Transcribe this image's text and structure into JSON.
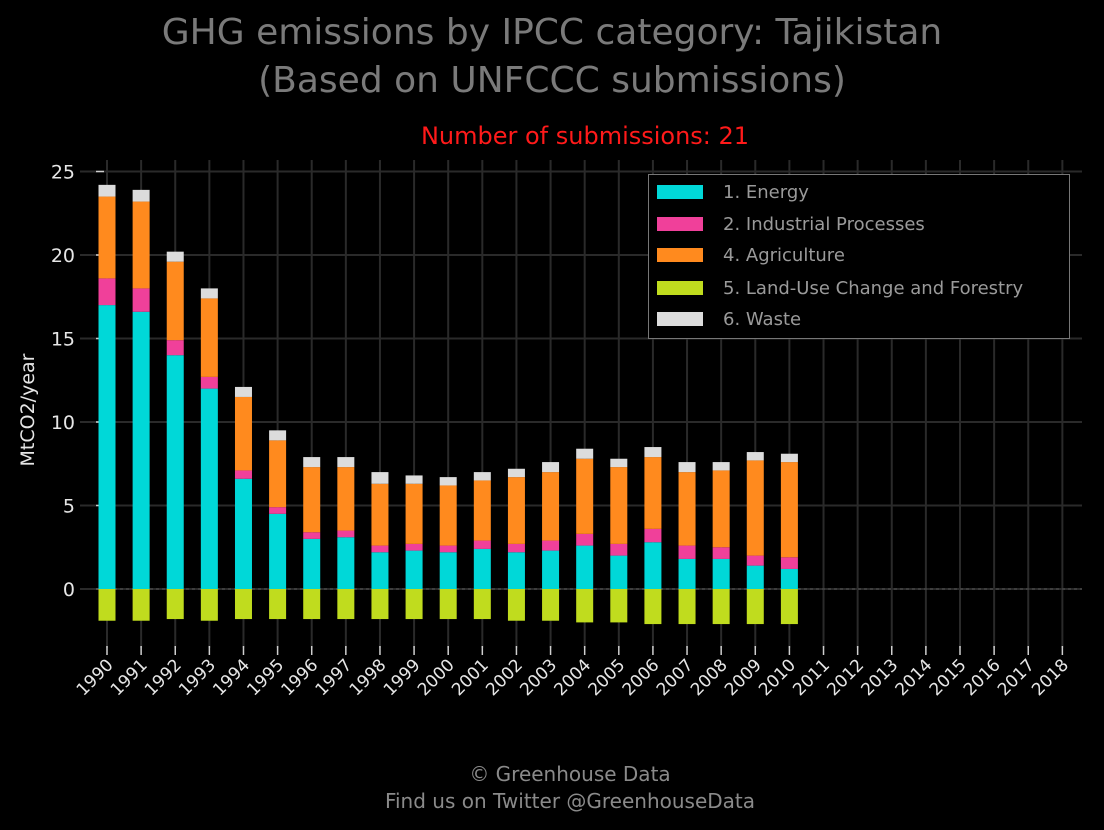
{
  "title_line1": "GHG emissions by IPCC category: Tajikistan",
  "title_line2": "(Based on UNFCCC submissions)",
  "subtitle": "Number of submissions: 21",
  "footer_line1": "© Greenhouse Data",
  "footer_line2": "Find us on Twitter @GreenhouseData",
  "colors": {
    "background": "#000000",
    "energy": "#00d8d8",
    "industrial": "#f0409a",
    "agriculture": "#ff8a1e",
    "landuse": "#c0dc1e",
    "waste": "#dcdcdc",
    "subtitle": "#ff1a1a"
  },
  "legend": [
    {
      "label": "1. Energy",
      "color": "#00d8d8"
    },
    {
      "label": "2. Industrial Processes",
      "color": "#f0409a"
    },
    {
      "label": "4. Agriculture",
      "color": "#ff8a1e"
    },
    {
      "label": "5. Land-Use Change and Forestry",
      "color": "#c0dc1e"
    },
    {
      "label": "6. Waste",
      "color": "#dcdcdc"
    }
  ],
  "chart_data": {
    "type": "bar",
    "stacked": true,
    "title": "GHG emissions by IPCC category: Tajikistan (Based on UNFCCC submissions)",
    "subtitle": "Number of submissions: 21",
    "xlabel": "",
    "ylabel": "MtCO2/year",
    "ylim": [
      -3.5,
      25.5
    ],
    "yticks": [
      0,
      5,
      10,
      15,
      20,
      25
    ],
    "grid": true,
    "legend_position": "top-right",
    "categories": [
      "1990",
      "1991",
      "1992",
      "1993",
      "1994",
      "1995",
      "1996",
      "1997",
      "1998",
      "1999",
      "2000",
      "2001",
      "2002",
      "2003",
      "2004",
      "2005",
      "2006",
      "2007",
      "2008",
      "2009",
      "2010",
      "2011",
      "2012",
      "2013",
      "2014",
      "2015",
      "2016",
      "2017",
      "2018"
    ],
    "series": [
      {
        "name": "1. Energy",
        "values": [
          17.0,
          16.6,
          14.0,
          12.0,
          6.6,
          4.5,
          3.0,
          3.1,
          2.2,
          2.3,
          2.2,
          2.4,
          2.2,
          2.3,
          2.6,
          2.0,
          2.8,
          1.8,
          1.8,
          1.4,
          1.2,
          null,
          null,
          null,
          null,
          null,
          null,
          null,
          null
        ]
      },
      {
        "name": "2. Industrial Processes",
        "values": [
          1.6,
          1.4,
          0.9,
          0.7,
          0.5,
          0.4,
          0.4,
          0.4,
          0.4,
          0.4,
          0.4,
          0.5,
          0.5,
          0.6,
          0.7,
          0.7,
          0.8,
          0.8,
          0.7,
          0.6,
          0.7,
          null,
          null,
          null,
          null,
          null,
          null,
          null,
          null
        ]
      },
      {
        "name": "4. Agriculture",
        "values": [
          4.9,
          5.2,
          4.7,
          4.7,
          4.4,
          4.0,
          3.9,
          3.8,
          3.7,
          3.6,
          3.6,
          3.6,
          4.0,
          4.1,
          4.5,
          4.6,
          4.3,
          4.4,
          4.6,
          5.7,
          5.7,
          null,
          null,
          null,
          null,
          null,
          null,
          null,
          null
        ]
      },
      {
        "name": "5. Land-Use Change and Forestry",
        "values": [
          -1.9,
          -1.9,
          -1.8,
          -1.9,
          -1.8,
          -1.8,
          -1.8,
          -1.8,
          -1.8,
          -1.8,
          -1.8,
          -1.8,
          -1.9,
          -1.9,
          -2.0,
          -2.0,
          -2.1,
          -2.1,
          -2.1,
          -2.1,
          -2.1,
          null,
          null,
          null,
          null,
          null,
          null,
          null,
          null
        ]
      },
      {
        "name": "6. Waste",
        "values": [
          0.7,
          0.7,
          0.6,
          0.6,
          0.6,
          0.6,
          0.6,
          0.6,
          0.7,
          0.5,
          0.5,
          0.5,
          0.5,
          0.6,
          0.6,
          0.5,
          0.6,
          0.6,
          0.5,
          0.5,
          0.5,
          null,
          null,
          null,
          null,
          null,
          null,
          null,
          null
        ]
      }
    ]
  }
}
